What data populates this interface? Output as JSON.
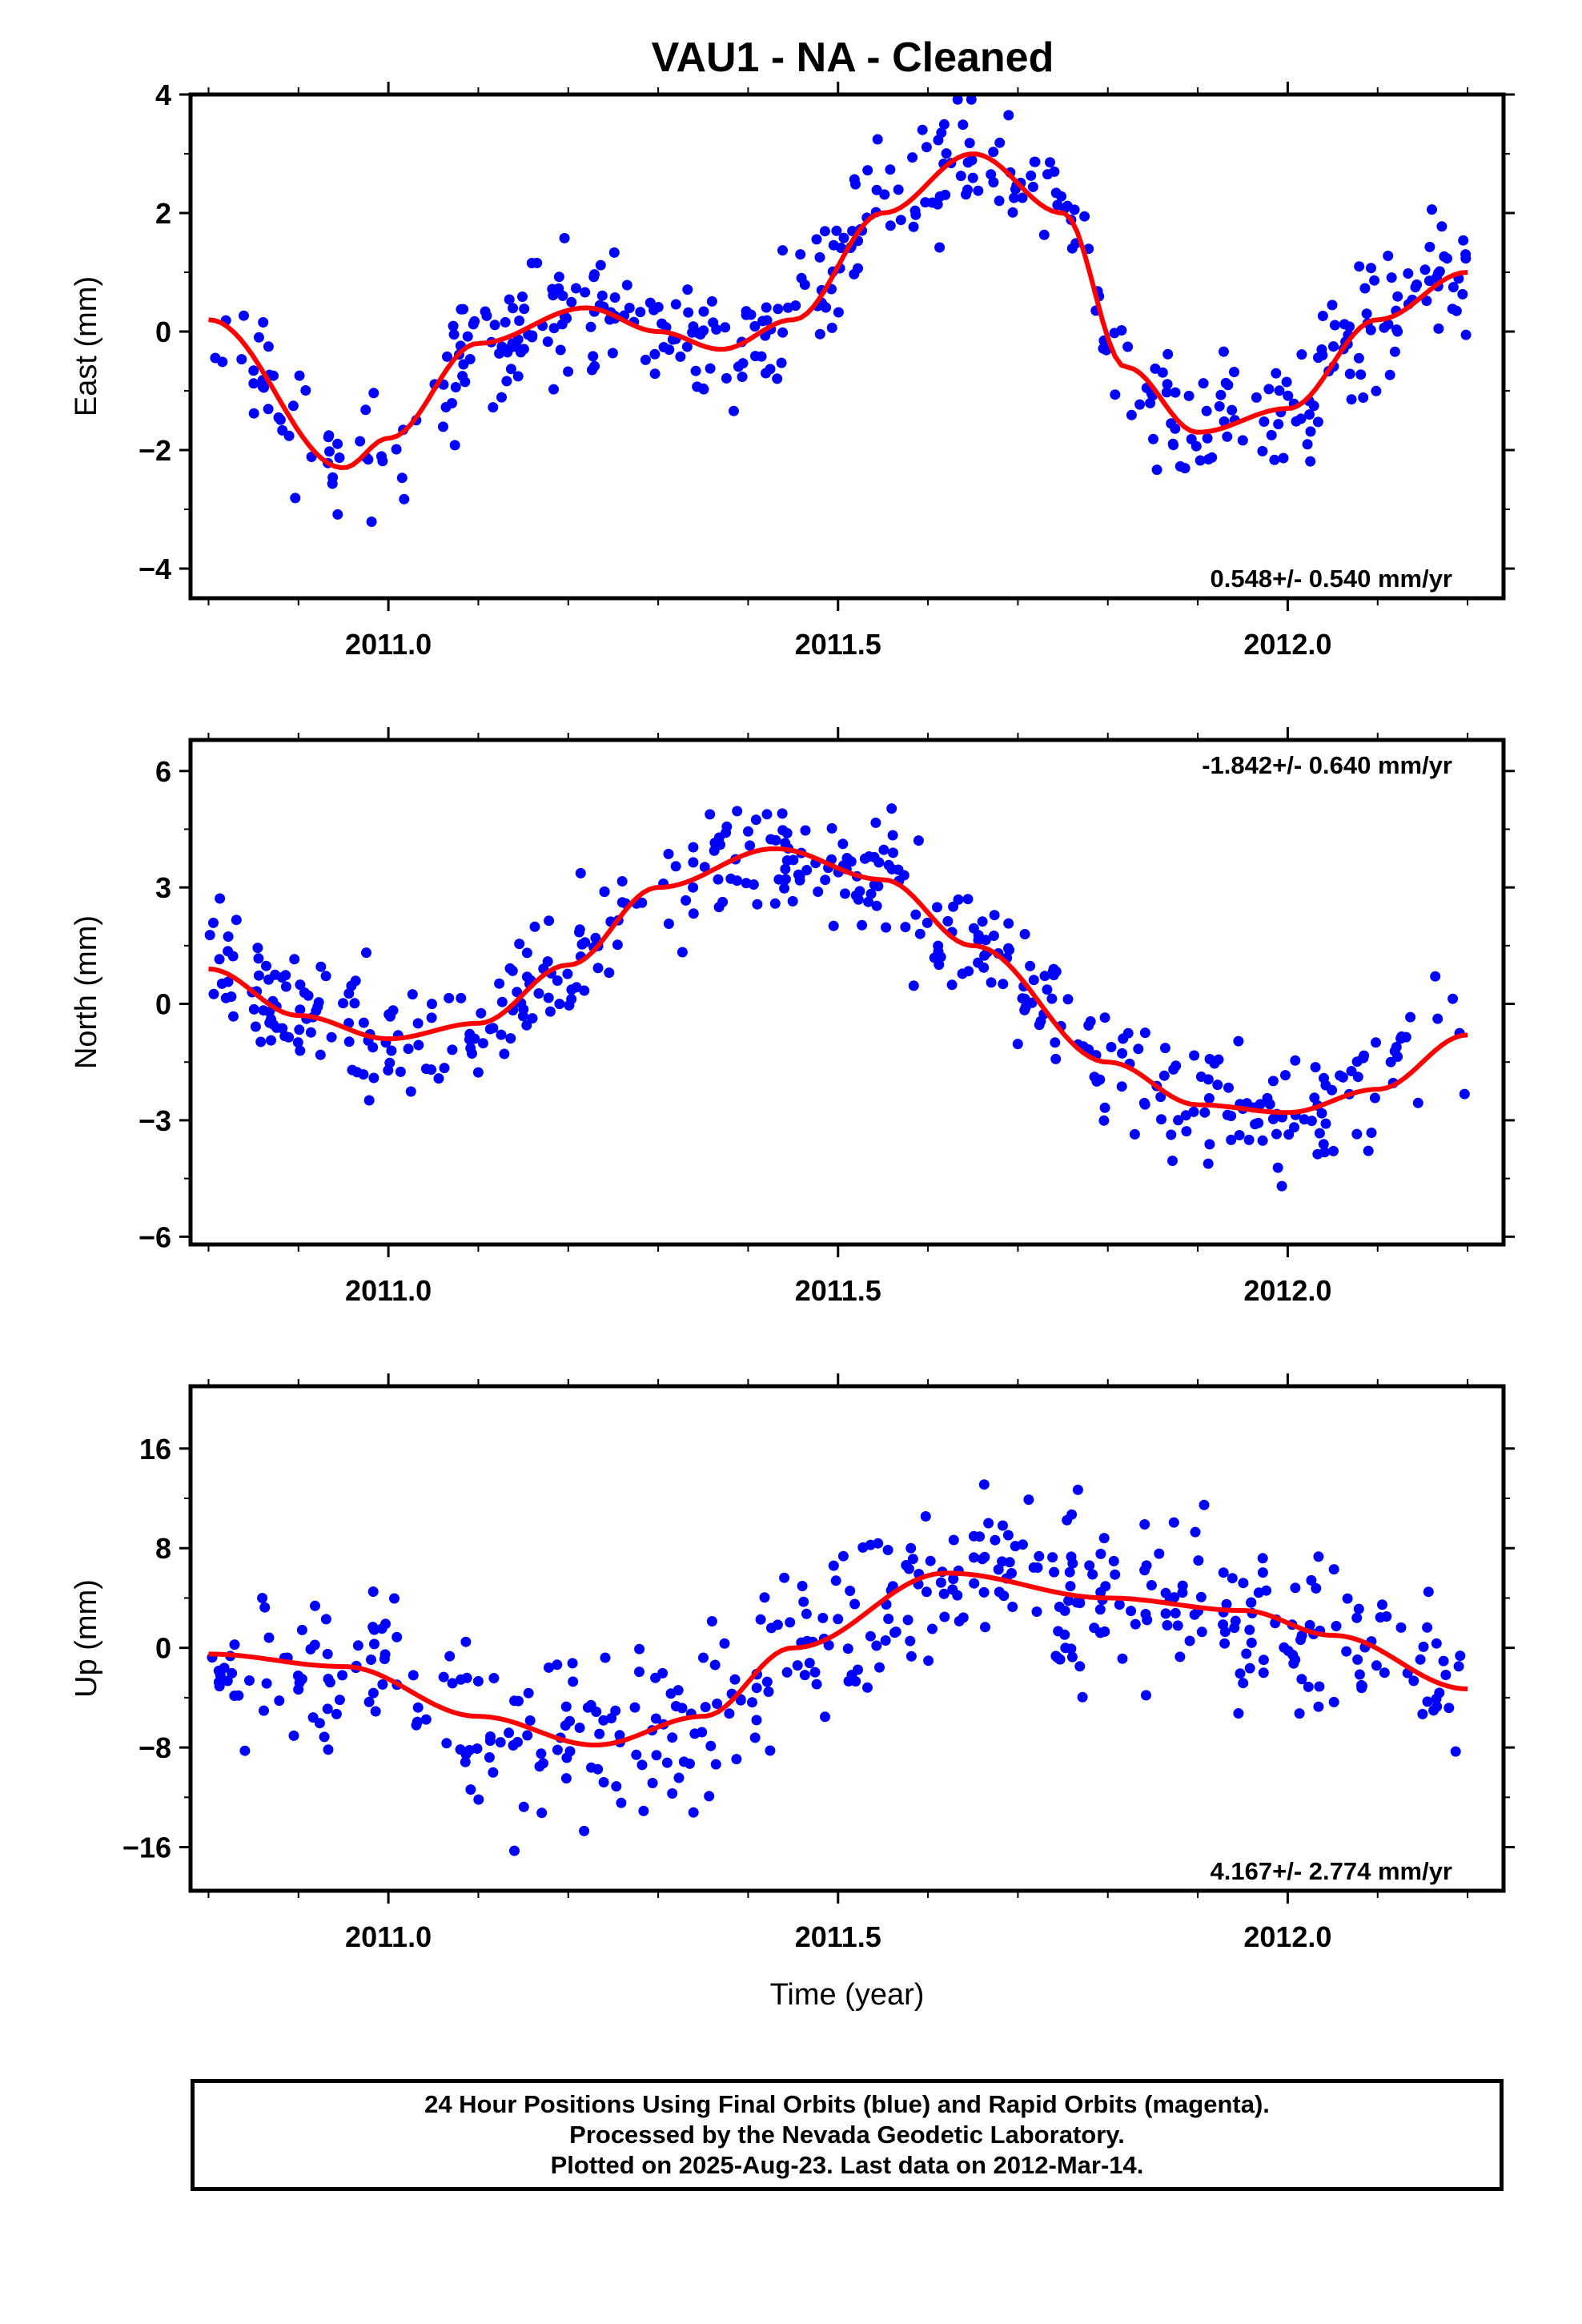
{
  "title": "VAU1  - NA - Cleaned",
  "footer": {
    "line1": "24 Hour Positions Using Final Orbits (blue) and Rapid Orbits (magenta).",
    "line2": "Processed by the Nevada Geodetic Laboratory.",
    "line3": "Plotted on 2025-Aug-23. Last data on 2012-Mar-14."
  },
  "chart_data": [
    {
      "type": "scatter",
      "ylabel": "East (mm)",
      "xlabel": "",
      "xlim": [
        2010.78,
        2012.24
      ],
      "ylim": [
        -4.5,
        4.0
      ],
      "yticks": [
        -4,
        -2,
        0,
        2,
        4
      ],
      "xticks": [
        2011.0,
        2011.5,
        2012.0
      ],
      "rate_text": "0.548+/- 0.540 mm/yr",
      "rate_position": "bottom-right",
      "point_color": "#0000ff",
      "fit_color": "#ff0000",
      "fit": {
        "x": [
          2010.8,
          2010.95,
          2011.0,
          2011.1,
          2011.22,
          2011.3,
          2011.37,
          2011.45,
          2011.55,
          2011.65,
          2011.75,
          2011.82,
          2011.9,
          2012.0,
          2012.1,
          2012.2
        ],
        "y": [
          0.2,
          -2.3,
          -1.8,
          -0.2,
          0.4,
          0.0,
          -0.3,
          0.2,
          2.0,
          3.0,
          2.0,
          -0.6,
          -1.7,
          -1.3,
          0.2,
          1.0
        ]
      },
      "noise": 0.8,
      "seed": 11
    },
    {
      "type": "scatter",
      "ylabel": "North (mm)",
      "xlabel": "",
      "xlim": [
        2010.78,
        2012.24
      ],
      "ylim": [
        -6.2,
        6.8
      ],
      "yticks": [
        -6,
        -3,
        0,
        3,
        6
      ],
      "xticks": [
        2011.0,
        2011.5,
        2012.0
      ],
      "rate_text": "-1.842+/- 0.640 mm/yr",
      "rate_position": "top-right",
      "point_color": "#0000ff",
      "fit_color": "#ff0000",
      "fit": {
        "x": [
          2010.8,
          2010.9,
          2011.0,
          2011.1,
          2011.2,
          2011.3,
          2011.43,
          2011.55,
          2011.65,
          2011.8,
          2011.9,
          2012.0,
          2012.1,
          2012.2
        ],
        "y": [
          0.9,
          -0.3,
          -0.9,
          -0.5,
          1.0,
          3.0,
          4.0,
          3.2,
          1.5,
          -1.5,
          -2.6,
          -2.8,
          -2.2,
          -0.8
        ]
      },
      "noise": 1.1,
      "seed": 23
    },
    {
      "type": "scatter",
      "ylabel": "Up (mm)",
      "xlabel": "Time (year)",
      "xlim": [
        2010.78,
        2012.24
      ],
      "ylim": [
        -19.5,
        21.0
      ],
      "yticks": [
        -16,
        -8,
        0,
        8,
        16
      ],
      "xticks": [
        2011.0,
        2011.5,
        2012.0
      ],
      "rate_text": "4.167+/- 2.774 mm/yr",
      "rate_position": "bottom-right",
      "point_color": "#0000ff",
      "fit_color": "#ff0000",
      "fit": {
        "x": [
          2010.8,
          2010.95,
          2011.1,
          2011.23,
          2011.35,
          2011.45,
          2011.62,
          2011.8,
          2011.95,
          2012.05,
          2012.2
        ],
        "y": [
          -0.5,
          -1.5,
          -5.5,
          -7.8,
          -5.5,
          0.0,
          6.0,
          4.0,
          3.0,
          1.0,
          -3.3
        ]
      },
      "noise": 4.8,
      "seed": 37
    }
  ]
}
